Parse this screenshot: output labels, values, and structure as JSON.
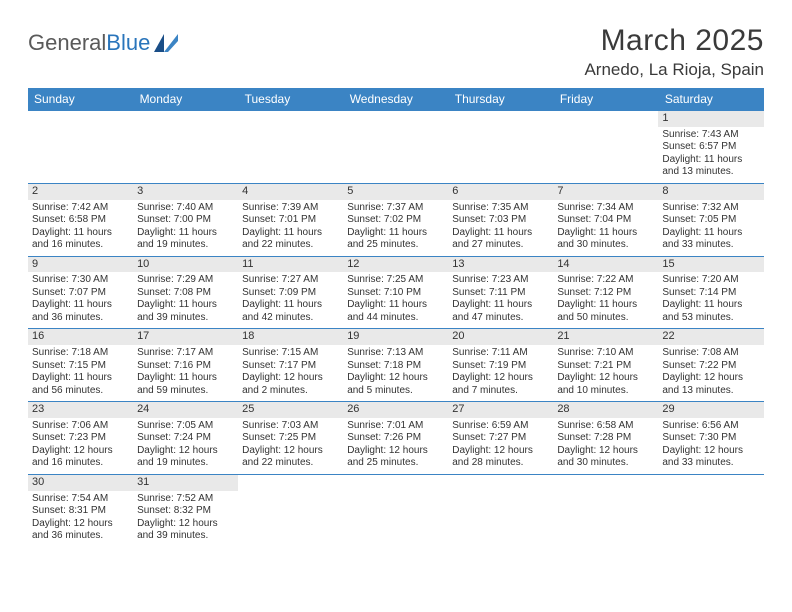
{
  "logo": {
    "text1": "General",
    "text2": "Blue"
  },
  "title": "March 2025",
  "location": "Arnedo, La Rioja, Spain",
  "colors": {
    "header_bg": "#3b84c4",
    "header_text": "#ffffff",
    "border": "#3b84c4",
    "daynum_bg": "#e9e9e9",
    "text": "#333333",
    "logo_gray": "#5a5a5a",
    "logo_blue": "#2a75bb"
  },
  "weekdays": [
    "Sunday",
    "Monday",
    "Tuesday",
    "Wednesday",
    "Thursday",
    "Friday",
    "Saturday"
  ],
  "weeks": [
    [
      null,
      null,
      null,
      null,
      null,
      null,
      {
        "d": "1",
        "sr": "Sunrise: 7:43 AM",
        "ss": "Sunset: 6:57 PM",
        "dl1": "Daylight: 11 hours",
        "dl2": "and 13 minutes."
      }
    ],
    [
      {
        "d": "2",
        "sr": "Sunrise: 7:42 AM",
        "ss": "Sunset: 6:58 PM",
        "dl1": "Daylight: 11 hours",
        "dl2": "and 16 minutes."
      },
      {
        "d": "3",
        "sr": "Sunrise: 7:40 AM",
        "ss": "Sunset: 7:00 PM",
        "dl1": "Daylight: 11 hours",
        "dl2": "and 19 minutes."
      },
      {
        "d": "4",
        "sr": "Sunrise: 7:39 AM",
        "ss": "Sunset: 7:01 PM",
        "dl1": "Daylight: 11 hours",
        "dl2": "and 22 minutes."
      },
      {
        "d": "5",
        "sr": "Sunrise: 7:37 AM",
        "ss": "Sunset: 7:02 PM",
        "dl1": "Daylight: 11 hours",
        "dl2": "and 25 minutes."
      },
      {
        "d": "6",
        "sr": "Sunrise: 7:35 AM",
        "ss": "Sunset: 7:03 PM",
        "dl1": "Daylight: 11 hours",
        "dl2": "and 27 minutes."
      },
      {
        "d": "7",
        "sr": "Sunrise: 7:34 AM",
        "ss": "Sunset: 7:04 PM",
        "dl1": "Daylight: 11 hours",
        "dl2": "and 30 minutes."
      },
      {
        "d": "8",
        "sr": "Sunrise: 7:32 AM",
        "ss": "Sunset: 7:05 PM",
        "dl1": "Daylight: 11 hours",
        "dl2": "and 33 minutes."
      }
    ],
    [
      {
        "d": "9",
        "sr": "Sunrise: 7:30 AM",
        "ss": "Sunset: 7:07 PM",
        "dl1": "Daylight: 11 hours",
        "dl2": "and 36 minutes."
      },
      {
        "d": "10",
        "sr": "Sunrise: 7:29 AM",
        "ss": "Sunset: 7:08 PM",
        "dl1": "Daylight: 11 hours",
        "dl2": "and 39 minutes."
      },
      {
        "d": "11",
        "sr": "Sunrise: 7:27 AM",
        "ss": "Sunset: 7:09 PM",
        "dl1": "Daylight: 11 hours",
        "dl2": "and 42 minutes."
      },
      {
        "d": "12",
        "sr": "Sunrise: 7:25 AM",
        "ss": "Sunset: 7:10 PM",
        "dl1": "Daylight: 11 hours",
        "dl2": "and 44 minutes."
      },
      {
        "d": "13",
        "sr": "Sunrise: 7:23 AM",
        "ss": "Sunset: 7:11 PM",
        "dl1": "Daylight: 11 hours",
        "dl2": "and 47 minutes."
      },
      {
        "d": "14",
        "sr": "Sunrise: 7:22 AM",
        "ss": "Sunset: 7:12 PM",
        "dl1": "Daylight: 11 hours",
        "dl2": "and 50 minutes."
      },
      {
        "d": "15",
        "sr": "Sunrise: 7:20 AM",
        "ss": "Sunset: 7:14 PM",
        "dl1": "Daylight: 11 hours",
        "dl2": "and 53 minutes."
      }
    ],
    [
      {
        "d": "16",
        "sr": "Sunrise: 7:18 AM",
        "ss": "Sunset: 7:15 PM",
        "dl1": "Daylight: 11 hours",
        "dl2": "and 56 minutes."
      },
      {
        "d": "17",
        "sr": "Sunrise: 7:17 AM",
        "ss": "Sunset: 7:16 PM",
        "dl1": "Daylight: 11 hours",
        "dl2": "and 59 minutes."
      },
      {
        "d": "18",
        "sr": "Sunrise: 7:15 AM",
        "ss": "Sunset: 7:17 PM",
        "dl1": "Daylight: 12 hours",
        "dl2": "and 2 minutes."
      },
      {
        "d": "19",
        "sr": "Sunrise: 7:13 AM",
        "ss": "Sunset: 7:18 PM",
        "dl1": "Daylight: 12 hours",
        "dl2": "and 5 minutes."
      },
      {
        "d": "20",
        "sr": "Sunrise: 7:11 AM",
        "ss": "Sunset: 7:19 PM",
        "dl1": "Daylight: 12 hours",
        "dl2": "and 7 minutes."
      },
      {
        "d": "21",
        "sr": "Sunrise: 7:10 AM",
        "ss": "Sunset: 7:21 PM",
        "dl1": "Daylight: 12 hours",
        "dl2": "and 10 minutes."
      },
      {
        "d": "22",
        "sr": "Sunrise: 7:08 AM",
        "ss": "Sunset: 7:22 PM",
        "dl1": "Daylight: 12 hours",
        "dl2": "and 13 minutes."
      }
    ],
    [
      {
        "d": "23",
        "sr": "Sunrise: 7:06 AM",
        "ss": "Sunset: 7:23 PM",
        "dl1": "Daylight: 12 hours",
        "dl2": "and 16 minutes."
      },
      {
        "d": "24",
        "sr": "Sunrise: 7:05 AM",
        "ss": "Sunset: 7:24 PM",
        "dl1": "Daylight: 12 hours",
        "dl2": "and 19 minutes."
      },
      {
        "d": "25",
        "sr": "Sunrise: 7:03 AM",
        "ss": "Sunset: 7:25 PM",
        "dl1": "Daylight: 12 hours",
        "dl2": "and 22 minutes."
      },
      {
        "d": "26",
        "sr": "Sunrise: 7:01 AM",
        "ss": "Sunset: 7:26 PM",
        "dl1": "Daylight: 12 hours",
        "dl2": "and 25 minutes."
      },
      {
        "d": "27",
        "sr": "Sunrise: 6:59 AM",
        "ss": "Sunset: 7:27 PM",
        "dl1": "Daylight: 12 hours",
        "dl2": "and 28 minutes."
      },
      {
        "d": "28",
        "sr": "Sunrise: 6:58 AM",
        "ss": "Sunset: 7:28 PM",
        "dl1": "Daylight: 12 hours",
        "dl2": "and 30 minutes."
      },
      {
        "d": "29",
        "sr": "Sunrise: 6:56 AM",
        "ss": "Sunset: 7:30 PM",
        "dl1": "Daylight: 12 hours",
        "dl2": "and 33 minutes."
      }
    ],
    [
      {
        "d": "30",
        "sr": "Sunrise: 7:54 AM",
        "ss": "Sunset: 8:31 PM",
        "dl1": "Daylight: 12 hours",
        "dl2": "and 36 minutes."
      },
      {
        "d": "31",
        "sr": "Sunrise: 7:52 AM",
        "ss": "Sunset: 8:32 PM",
        "dl1": "Daylight: 12 hours",
        "dl2": "and 39 minutes."
      },
      null,
      null,
      null,
      null,
      null
    ]
  ]
}
